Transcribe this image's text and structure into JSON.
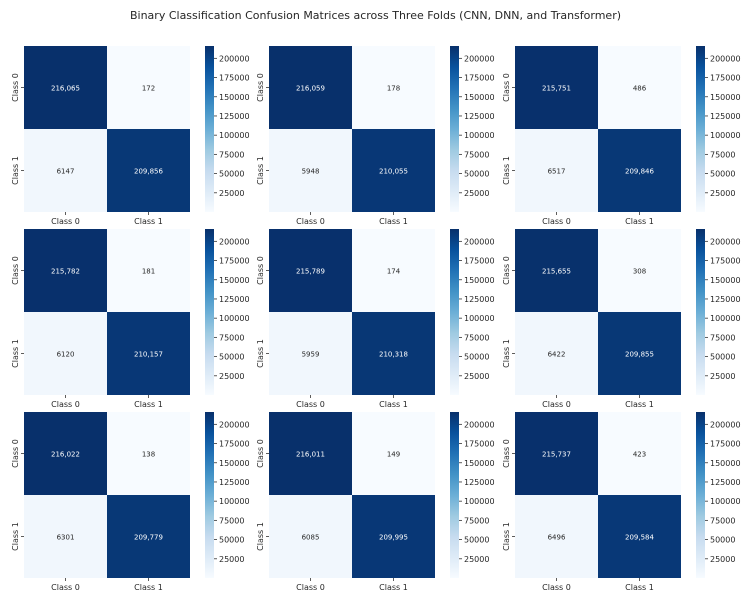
{
  "title": "Binary Classification Confusion Matrices across Three Folds (CNN, DNN, and Transformer)",
  "colormap": {
    "name": "Blues",
    "low": "#f7fbff",
    "high": "#08306b",
    "vmin": 0,
    "vmax": 216065
  },
  "chart_data": [
    {
      "type": "heatmap",
      "x": [
        "Class 0",
        "Class 1"
      ],
      "y": [
        "Class 0",
        "Class 1"
      ],
      "values": [
        [
          216065,
          172
        ],
        [
          6147,
          209856
        ]
      ],
      "labels": [
        [
          "216,065",
          "172"
        ],
        [
          "6147",
          "209,856"
        ]
      ],
      "colorbar_ticks": [
        25000,
        50000,
        75000,
        100000,
        125000,
        150000,
        175000,
        200000
      ],
      "colorbar_tick_labels": [
        "25000",
        "50000",
        "75000",
        "100000",
        "125000",
        "150000",
        "175000",
        "200000"
      ]
    },
    {
      "type": "heatmap",
      "x": [
        "Class 0",
        "Class 1"
      ],
      "y": [
        "Class 0",
        "Class 1"
      ],
      "values": [
        [
          216059,
          178
        ],
        [
          5948,
          210055
        ]
      ],
      "labels": [
        [
          "216,059",
          "178"
        ],
        [
          "5948",
          "210,055"
        ]
      ],
      "colorbar_ticks": [
        25000,
        50000,
        75000,
        100000,
        125000,
        150000,
        175000,
        200000
      ],
      "colorbar_tick_labels": [
        "25000",
        "50000",
        "75000",
        "100000",
        "125000",
        "150000",
        "175000",
        "200000"
      ]
    },
    {
      "type": "heatmap",
      "x": [
        "Class 0",
        "Class 1"
      ],
      "y": [
        "Class 0",
        "Class 1"
      ],
      "values": [
        [
          215751,
          486
        ],
        [
          6517,
          209846
        ]
      ],
      "labels": [
        [
          "215,751",
          "486"
        ],
        [
          "6517",
          "209,846"
        ]
      ],
      "colorbar_ticks": [
        25000,
        50000,
        75000,
        100000,
        125000,
        150000,
        175000,
        200000
      ],
      "colorbar_tick_labels": [
        "25000",
        "50000",
        "75000",
        "100000",
        "125000",
        "150000",
        "175000",
        "200000"
      ]
    },
    {
      "type": "heatmap",
      "x": [
        "Class 0",
        "Class 1"
      ],
      "y": [
        "Class 0",
        "Class 1"
      ],
      "values": [
        [
          215782,
          181
        ],
        [
          6120,
          210157
        ]
      ],
      "labels": [
        [
          "215,782",
          "181"
        ],
        [
          "6120",
          "210,157"
        ]
      ],
      "colorbar_ticks": [
        25000,
        50000,
        75000,
        100000,
        125000,
        150000,
        175000,
        200000
      ],
      "colorbar_tick_labels": [
        "25000",
        "50000",
        "75000",
        "100000",
        "125000",
        "150000",
        "175000",
        "200000"
      ]
    },
    {
      "type": "heatmap",
      "x": [
        "Class 0",
        "Class 1"
      ],
      "y": [
        "Class 0",
        "Class 1"
      ],
      "values": [
        [
          215789,
          174
        ],
        [
          5959,
          210318
        ]
      ],
      "labels": [
        [
          "215,789",
          "174"
        ],
        [
          "5959",
          "210,318"
        ]
      ],
      "colorbar_ticks": [
        25000,
        50000,
        75000,
        100000,
        125000,
        150000,
        175000,
        200000
      ],
      "colorbar_tick_labels": [
        "25000",
        "50000",
        "75000",
        "100000",
        "125000",
        "150000",
        "175000",
        "200000"
      ]
    },
    {
      "type": "heatmap",
      "x": [
        "Class 0",
        "Class 1"
      ],
      "y": [
        "Class 0",
        "Class 1"
      ],
      "values": [
        [
          215655,
          308
        ],
        [
          6422,
          209855
        ]
      ],
      "labels": [
        [
          "215,655",
          "308"
        ],
        [
          "6422",
          "209,855"
        ]
      ],
      "colorbar_ticks": [
        25000,
        50000,
        75000,
        100000,
        125000,
        150000,
        175000,
        200000
      ],
      "colorbar_tick_labels": [
        "25000",
        "50000",
        "75000",
        "100000",
        "125000",
        "150000",
        "175000",
        "200000"
      ]
    },
    {
      "type": "heatmap",
      "x": [
        "Class 0",
        "Class 1"
      ],
      "y": [
        "Class 0",
        "Class 1"
      ],
      "values": [
        [
          216022,
          138
        ],
        [
          6301,
          209779
        ]
      ],
      "labels": [
        [
          "216,022",
          "138"
        ],
        [
          "6301",
          "209,779"
        ]
      ],
      "colorbar_ticks": [
        25000,
        50000,
        75000,
        100000,
        125000,
        150000,
        175000,
        200000
      ],
      "colorbar_tick_labels": [
        "25000",
        "50000",
        "75000",
        "100000",
        "125000",
        "150000",
        "175000",
        "200000"
      ]
    },
    {
      "type": "heatmap",
      "x": [
        "Class 0",
        "Class 1"
      ],
      "y": [
        "Class 0",
        "Class 1"
      ],
      "values": [
        [
          216011,
          149
        ],
        [
          6085,
          209995
        ]
      ],
      "labels": [
        [
          "216,011",
          "149"
        ],
        [
          "6085",
          "209,995"
        ]
      ],
      "colorbar_ticks": [
        25000,
        50000,
        75000,
        100000,
        125000,
        150000,
        175000,
        200000
      ],
      "colorbar_tick_labels": [
        "25000",
        "50000",
        "75000",
        "100000",
        "125000",
        "150000",
        "175000",
        "200000"
      ]
    },
    {
      "type": "heatmap",
      "x": [
        "Class 0",
        "Class 1"
      ],
      "y": [
        "Class 0",
        "Class 1"
      ],
      "values": [
        [
          215737,
          423
        ],
        [
          6496,
          209584
        ]
      ],
      "labels": [
        [
          "215,737",
          "423"
        ],
        [
          "6496",
          "209,584"
        ]
      ],
      "colorbar_ticks": [
        25000,
        50000,
        75000,
        100000,
        125000,
        150000,
        175000,
        200000
      ],
      "colorbar_tick_labels": [
        "25000",
        "50000",
        "75000",
        "100000",
        "125000",
        "150000",
        "175000",
        "200000"
      ]
    }
  ]
}
